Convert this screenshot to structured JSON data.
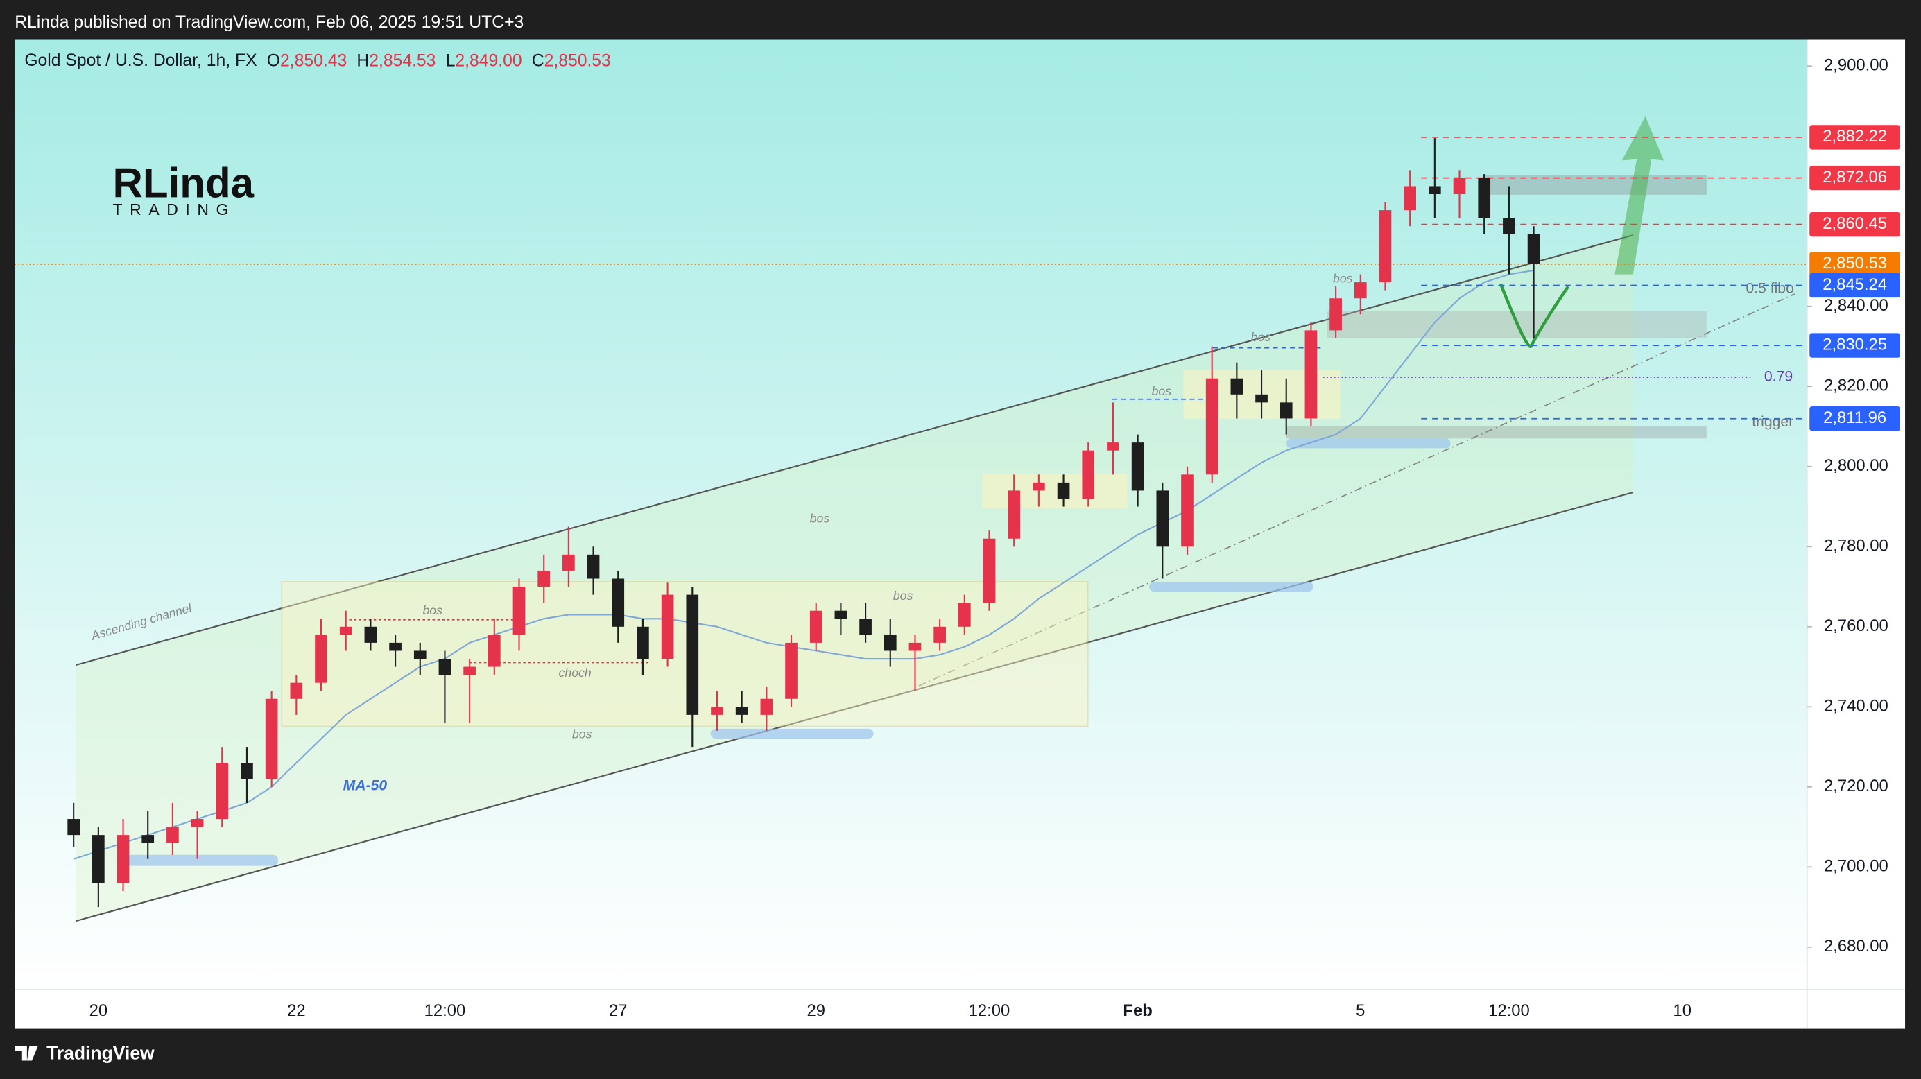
{
  "header": {
    "publisher": "RLinda published on TradingView.com, Feb 06, 2025 19:51 UTC+3",
    "symbol": "Gold Spot / U.S. Dollar, 1h, FX",
    "ohlc": [
      {
        "key": "O",
        "value": "2,850.43"
      },
      {
        "key": "H",
        "value": "2,854.53"
      },
      {
        "key": "L",
        "value": "2,849.00"
      },
      {
        "key": "C",
        "value": "2,850.53"
      }
    ]
  },
  "logo": {
    "name": "RLinda",
    "tagline": "TRADING"
  },
  "footer": {
    "brand": "TradingView"
  },
  "annotations": [
    "Ascending channel",
    "MA-50",
    "bos",
    "bos",
    "bos",
    "bos",
    "bos",
    "bos",
    "bos",
    "choch",
    "0.5 fibo",
    "0.79",
    "trigger"
  ],
  "chart_data": {
    "type": "candlestick",
    "categories": [
      null,
      "20",
      null,
      null,
      null,
      null,
      null,
      null,
      null,
      "22",
      null,
      null,
      null,
      null,
      null,
      "12:00",
      null,
      null,
      null,
      null,
      null,
      null,
      "27",
      null,
      null,
      null,
      null,
      null,
      null,
      null,
      "29",
      null,
      null,
      null,
      null,
      null,
      null,
      "12:00",
      null,
      null,
      null,
      null,
      null,
      "Feb",
      null,
      null,
      null,
      null,
      null,
      null,
      null,
      null,
      "5",
      null,
      null,
      null,
      null,
      null,
      "12:00",
      null,
      null,
      null,
      null,
      null,
      null,
      "10"
    ],
    "open": [
      2712,
      2708,
      2696,
      2708,
      2706,
      2710,
      2712,
      2726,
      2722,
      2742,
      2746,
      2758,
      2760,
      2756,
      2754,
      2752,
      2748,
      2750,
      2758,
      2770,
      2774,
      2778,
      2772,
      2760,
      2752,
      2768,
      2738,
      2740,
      2738,
      2742,
      2756,
      2764,
      2762,
      2758,
      2754,
      2756,
      2760,
      2766,
      2782,
      2794,
      2796,
      2792,
      2804,
      2806,
      2794,
      2780,
      2798,
      2822,
      2818,
      2816,
      2812,
      2834,
      2842,
      2846,
      2864,
      2870,
      2868,
      2872,
      2862,
      2858,
      null,
      null,
      null,
      null,
      null,
      null
    ],
    "high": [
      2716,
      2710,
      2712,
      2714,
      2716,
      2714,
      2730,
      2730,
      2744,
      2748,
      2762,
      2764,
      2762,
      2758,
      2756,
      2754,
      2752,
      2762,
      2772,
      2778,
      2785,
      2780,
      2774,
      2762,
      2771,
      2770,
      2744,
      2744,
      2745,
      2758,
      2766,
      2766,
      2766,
      2762,
      2758,
      2762,
      2768,
      2784,
      2798,
      2798,
      2798,
      2806,
      2816,
      2808,
      2796,
      2800,
      2830,
      2826,
      2824,
      2822,
      2836,
      2845,
      2848,
      2866,
      2874,
      2882,
      2874,
      2873,
      2870,
      2860,
      null,
      null,
      null,
      null,
      null,
      null
    ],
    "low": [
      2705,
      2690,
      2694,
      2702,
      2703,
      2702,
      2710,
      2716,
      2720,
      2738,
      2744,
      2754,
      2754,
      2750,
      2748,
      2736,
      2736,
      2748,
      2754,
      2766,
      2770,
      2768,
      2756,
      2748,
      2750,
      2730,
      2734,
      2736,
      2734,
      2740,
      2754,
      2758,
      2756,
      2750,
      2744,
      2754,
      2758,
      2764,
      2780,
      2790,
      2790,
      2790,
      2798,
      2790,
      2772,
      2778,
      2796,
      2812,
      2812,
      2808,
      2810,
      2832,
      2838,
      2844,
      2860,
      2862,
      2862,
      2858,
      2848,
      2832,
      null,
      null,
      null,
      null,
      null,
      null
    ],
    "close": [
      2708,
      2696,
      2708,
      2706,
      2710,
      2712,
      2726,
      2722,
      2742,
      2746,
      2758,
      2760,
      2756,
      2754,
      2752,
      2748,
      2750,
      2758,
      2770,
      2774,
      2778,
      2772,
      2760,
      2752,
      2768,
      2738,
      2740,
      2738,
      2742,
      2756,
      2764,
      2762,
      2758,
      2754,
      2756,
      2760,
      2766,
      2782,
      2794,
      2796,
      2792,
      2804,
      2806,
      2794,
      2780,
      2798,
      2822,
      2818,
      2816,
      2812,
      2834,
      2842,
      2846,
      2864,
      2870,
      2868,
      2872,
      2862,
      2858,
      2850.53,
      null,
      null,
      null,
      null,
      null,
      null
    ],
    "up_color": "#e5334b",
    "down_color": "#1e1e1e",
    "ma": {
      "name": "MA-50",
      "color": "#7fa8d8",
      "values": [
        2702,
        2704,
        2706,
        2708,
        2710,
        2712,
        2714,
        2716,
        2720,
        2726,
        2732,
        2738,
        2742,
        2746,
        2750,
        2752,
        2756,
        2758,
        2760,
        2762,
        2763,
        2763,
        2763,
        2762,
        2762,
        2761,
        2760,
        2758,
        2756,
        2755,
        2754,
        2753,
        2752,
        2752,
        2752,
        2753,
        2755,
        2758,
        2762,
        2767,
        2771,
        2775,
        2779,
        2783,
        2786,
        2789,
        2793,
        2797,
        2801,
        2804,
        2806,
        2808,
        2812,
        2820,
        2828,
        2836,
        2842,
        2846,
        2848,
        2849,
        null,
        null,
        null,
        null,
        null,
        null
      ]
    },
    "levels": {
      "values": [
        2882.22,
        2872.06,
        2860.45,
        2850.53,
        2845.24,
        2830.25,
        2811.96
      ],
      "value_labels": [
        "2,882.22",
        "2,872.06",
        "2,860.45",
        "2,850.53",
        "2,845.24",
        "2,830.25",
        "2,811.96"
      ],
      "colors": [
        "#f23645",
        "#f23645",
        "#f23645",
        "#f57c00",
        "#2962ff",
        "#2962ff",
        "#2962ff"
      ]
    },
    "ylim": [
      2669.4,
      2906.7
    ],
    "yticks": [
      {
        "value": 2680,
        "label": "2,680.00"
      },
      {
        "value": 2700,
        "label": "2,700.00"
      },
      {
        "value": 2720,
        "label": "2,720.00"
      },
      {
        "value": 2740,
        "label": "2,740.00"
      },
      {
        "value": 2760,
        "label": "2,760.00"
      },
      {
        "value": 2780,
        "label": "2,780.00"
      },
      {
        "value": 2800,
        "label": "2,800.00"
      },
      {
        "value": 2820,
        "label": "2,820.00"
      },
      {
        "value": 2840,
        "label": "2,840.00"
      },
      {
        "value": 2900,
        "label": "2,900.00"
      }
    ]
  }
}
